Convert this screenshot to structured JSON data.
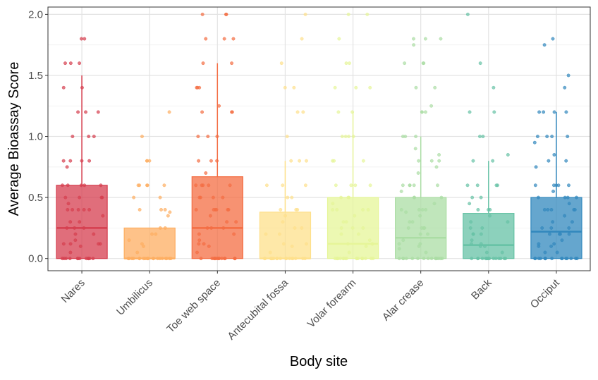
{
  "chart_data": {
    "type": "box",
    "xlabel": "Body site",
    "ylabel": "Average Bioassay Score",
    "ylim": [
      -0.1,
      2.06
    ],
    "yticks": [
      0.0,
      0.5,
      1.0,
      1.5,
      2.0
    ],
    "ytick_labels": [
      "0.0",
      "0.5",
      "1.0",
      "1.5",
      "2.0"
    ],
    "grid": true,
    "legend": "none",
    "overlay": "jittered points",
    "categories": [
      "Nares",
      "Umbilicus",
      "Toe web space",
      "Antecubital fossa",
      "Volar forearm",
      "Alar crease",
      "Back",
      "Occiput"
    ],
    "colors": [
      "#d53e4f",
      "#fdae61",
      "#f46d43",
      "#fee08b",
      "#e6f598",
      "#abdda4",
      "#66c2a5",
      "#3288bd"
    ],
    "boxes": [
      {
        "site": "Nares",
        "q1": 0.0,
        "median": 0.25,
        "q3": 0.6,
        "whisker_low": 0.0,
        "whisker_high": 1.5,
        "points": [
          1.8,
          1.8,
          1.6,
          1.6,
          1.6,
          1.4,
          1.4,
          1.2,
          1.2,
          1.2,
          1.0,
          1.0,
          1.0,
          0.8,
          0.8,
          0.8,
          0.8,
          0.75,
          0.6,
          0.6,
          0.6,
          0.6,
          0.6,
          0.5,
          0.5,
          0.5,
          0.5,
          0.45,
          0.4,
          0.4,
          0.4,
          0.4,
          0.4,
          0.35,
          0.3,
          0.3,
          0.25,
          0.25,
          0.25,
          0.2,
          0.2,
          0.15,
          0.12,
          0.12,
          0.12,
          0.12,
          0.1,
          0.05,
          0.0,
          0.0,
          0.0,
          0.0,
          0.0,
          0.0,
          0.0,
          0.0,
          0.0,
          0.0,
          0.0,
          0.0
        ]
      },
      {
        "site": "Umbilicus",
        "q1": 0.0,
        "median": 0.0,
        "q3": 0.25,
        "whisker_low": 0.0,
        "whisker_high": 0.25,
        "points": [
          1.2,
          1.0,
          0.8,
          0.8,
          0.8,
          0.6,
          0.6,
          0.6,
          0.6,
          0.6,
          0.5,
          0.5,
          0.4,
          0.4,
          0.4,
          0.38,
          0.35,
          0.25,
          0.25,
          0.2,
          0.2,
          0.15,
          0.12,
          0.1,
          0.05,
          0.0,
          0.0,
          0.0,
          0.0,
          0.0,
          0.0,
          0.0,
          0.0,
          0.0,
          0.0,
          0.0,
          0.0,
          0.0,
          0.0,
          0.0,
          0.0,
          0.0,
          0.0,
          0.0,
          0.0
        ]
      },
      {
        "site": "Toe web space",
        "q1": 0.0,
        "median": 0.25,
        "q3": 0.67,
        "whisker_low": 0.0,
        "whisker_high": 1.6,
        "points": [
          2.0,
          2.0,
          2.0,
          1.8,
          1.8,
          1.8,
          1.6,
          1.6,
          1.4,
          1.4,
          1.4,
          1.25,
          1.2,
          1.2,
          1.2,
          1.0,
          1.0,
          1.0,
          0.8,
          0.8,
          0.8,
          0.7,
          0.6,
          0.6,
          0.6,
          0.6,
          0.6,
          0.5,
          0.5,
          0.5,
          0.5,
          0.4,
          0.4,
          0.4,
          0.4,
          0.4,
          0.4,
          0.35,
          0.3,
          0.3,
          0.25,
          0.25,
          0.25,
          0.2,
          0.2,
          0.15,
          0.12,
          0.12,
          0.1,
          0.05,
          0.0,
          0.0,
          0.0,
          0.0,
          0.0,
          0.0,
          0.0,
          0.0,
          0.0,
          0.0,
          0.0,
          0.0,
          0.0,
          0.0
        ]
      },
      {
        "site": "Antecubital fossa",
        "q1": 0.0,
        "median": 0.0,
        "q3": 0.38,
        "whisker_low": 0.0,
        "whisker_high": 0.8,
        "points": [
          2.0,
          1.8,
          1.6,
          1.4,
          1.4,
          1.2,
          1.2,
          1.0,
          0.8,
          0.8,
          0.8,
          0.6,
          0.6,
          0.6,
          0.5,
          0.5,
          0.4,
          0.4,
          0.4,
          0.35,
          0.3,
          0.25,
          0.25,
          0.2,
          0.2,
          0.12,
          0.12,
          0.1,
          0.05,
          0.0,
          0.0,
          0.0,
          0.0,
          0.0,
          0.0,
          0.0,
          0.0,
          0.0,
          0.0,
          0.0,
          0.0,
          0.0,
          0.0,
          0.0,
          0.0,
          0.0
        ]
      },
      {
        "site": "Volar forearm",
        "q1": 0.0,
        "median": 0.12,
        "q3": 0.5,
        "whisker_low": 0.0,
        "whisker_high": 1.2,
        "points": [
          2.0,
          2.0,
          1.8,
          1.6,
          1.6,
          1.4,
          1.4,
          1.4,
          1.2,
          1.2,
          1.0,
          1.0,
          1.0,
          1.0,
          0.8,
          0.8,
          0.8,
          0.6,
          0.6,
          0.6,
          0.6,
          0.5,
          0.5,
          0.5,
          0.45,
          0.4,
          0.4,
          0.4,
          0.4,
          0.35,
          0.3,
          0.3,
          0.25,
          0.25,
          0.25,
          0.2,
          0.2,
          0.15,
          0.12,
          0.12,
          0.12,
          0.1,
          0.05,
          0.0,
          0.0,
          0.0,
          0.0,
          0.0,
          0.0,
          0.0,
          0.0,
          0.0,
          0.0,
          0.0,
          0.0,
          0.0,
          0.0,
          0.0,
          0.0,
          0.0,
          0.0
        ]
      },
      {
        "site": "Alar crease",
        "q1": 0.0,
        "median": 0.17,
        "q3": 0.5,
        "whisker_low": 0.0,
        "whisker_high": 1.0,
        "points": [
          1.8,
          1.8,
          1.8,
          1.75,
          1.6,
          1.6,
          1.6,
          1.4,
          1.4,
          1.25,
          1.2,
          1.2,
          1.2,
          1.0,
          1.0,
          1.0,
          0.9,
          0.85,
          0.8,
          0.8,
          0.8,
          0.75,
          0.7,
          0.6,
          0.6,
          0.6,
          0.6,
          0.6,
          0.55,
          0.5,
          0.5,
          0.5,
          0.45,
          0.4,
          0.4,
          0.4,
          0.4,
          0.38,
          0.35,
          0.3,
          0.3,
          0.25,
          0.25,
          0.25,
          0.25,
          0.2,
          0.2,
          0.15,
          0.12,
          0.12,
          0.1,
          0.08,
          0.05,
          0.0,
          0.0,
          0.0,
          0.0,
          0.0,
          0.0,
          0.0,
          0.0,
          0.0,
          0.0,
          0.0,
          0.0,
          0.0,
          0.0,
          0.0
        ]
      },
      {
        "site": "Back",
        "q1": 0.0,
        "median": 0.11,
        "q3": 0.37,
        "whisker_low": 0.0,
        "whisker_high": 0.8,
        "points": [
          2.0,
          1.6,
          1.4,
          1.2,
          1.2,
          1.0,
          1.0,
          0.85,
          0.8,
          0.8,
          0.6,
          0.6,
          0.6,
          0.6,
          0.5,
          0.5,
          0.45,
          0.4,
          0.4,
          0.4,
          0.35,
          0.3,
          0.3,
          0.25,
          0.25,
          0.2,
          0.2,
          0.2,
          0.15,
          0.12,
          0.12,
          0.1,
          0.1,
          0.05,
          0.05,
          0.0,
          0.0,
          0.0,
          0.0,
          0.0,
          0.0,
          0.0,
          0.0,
          0.0,
          0.0,
          0.0,
          0.0,
          0.0,
          0.0,
          0.0
        ]
      },
      {
        "site": "Occiput",
        "q1": 0.0,
        "median": 0.22,
        "q3": 0.5,
        "whisker_low": 0.0,
        "whisker_high": 1.2,
        "points": [
          1.8,
          1.75,
          1.5,
          1.4,
          1.2,
          1.2,
          1.2,
          1.2,
          1.0,
          1.0,
          1.0,
          1.0,
          0.95,
          0.85,
          0.8,
          0.8,
          0.75,
          0.6,
          0.6,
          0.6,
          0.6,
          0.6,
          0.55,
          0.5,
          0.5,
          0.5,
          0.5,
          0.45,
          0.4,
          0.4,
          0.4,
          0.4,
          0.4,
          0.35,
          0.3,
          0.3,
          0.25,
          0.25,
          0.25,
          0.2,
          0.2,
          0.2,
          0.2,
          0.15,
          0.12,
          0.12,
          0.1,
          0.1,
          0.05,
          0.05,
          0.0,
          0.0,
          0.0,
          0.0,
          0.0,
          0.0,
          0.0,
          0.0,
          0.0,
          0.0,
          0.0,
          0.0,
          0.0,
          0.0,
          0.0
        ]
      }
    ]
  }
}
